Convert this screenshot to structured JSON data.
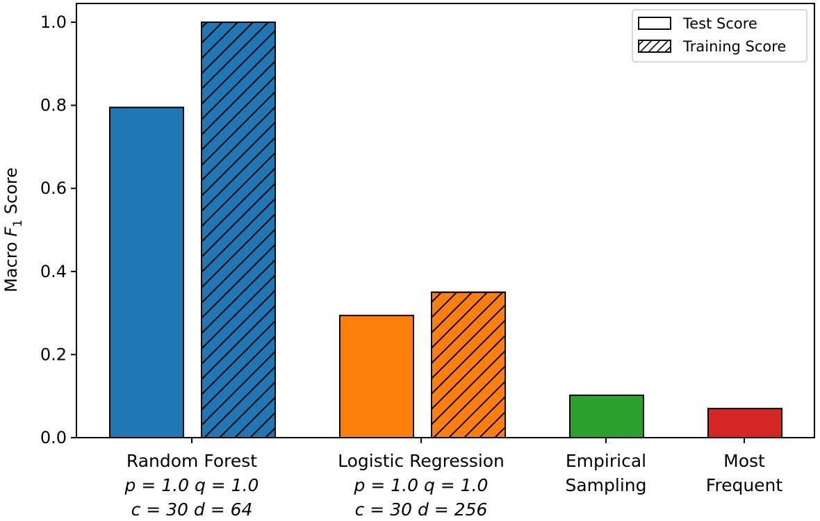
{
  "chart_data": {
    "type": "bar",
    "ylabel": {
      "prefix": "Macro ",
      "var": "F",
      "sub": "1",
      "suffix": " Score"
    },
    "ylim": [
      0,
      1.0
    ],
    "yticks": [
      "0.0",
      "0.2",
      "0.4",
      "0.6",
      "0.8",
      "1.0"
    ],
    "grid": false,
    "legend_position": "top-right",
    "legend": [
      {
        "label": "Test Score",
        "hatch": false
      },
      {
        "label": "Training Score",
        "hatch": true
      }
    ],
    "groups": [
      {
        "line1": "Random Forest",
        "line2": "p = 1.0  q = 1.0",
        "line3": "c = 30  d = 64",
        "color": "#1f77b4",
        "bars": [
          {
            "series": "Test Score",
            "value": 0.795
          },
          {
            "series": "Training Score",
            "value": 1.0
          }
        ]
      },
      {
        "line1": "Logistic Regression",
        "line2": "p = 1.0  q = 1.0",
        "line3": "c = 30  d = 256",
        "color": "#ff7f0e",
        "bars": [
          {
            "series": "Test Score",
            "value": 0.294
          },
          {
            "series": "Training Score",
            "value": 0.35
          }
        ]
      },
      {
        "line1": "Empirical",
        "line2": "Sampling",
        "line3": "",
        "color": "#2ca02c",
        "bars": [
          {
            "series": "Test Score",
            "value": 0.102
          }
        ]
      },
      {
        "line1": "Most",
        "line2": "Frequent",
        "line3": "",
        "color": "#d62728",
        "bars": [
          {
            "series": "Test Score",
            "value": 0.07
          }
        ]
      }
    ]
  }
}
